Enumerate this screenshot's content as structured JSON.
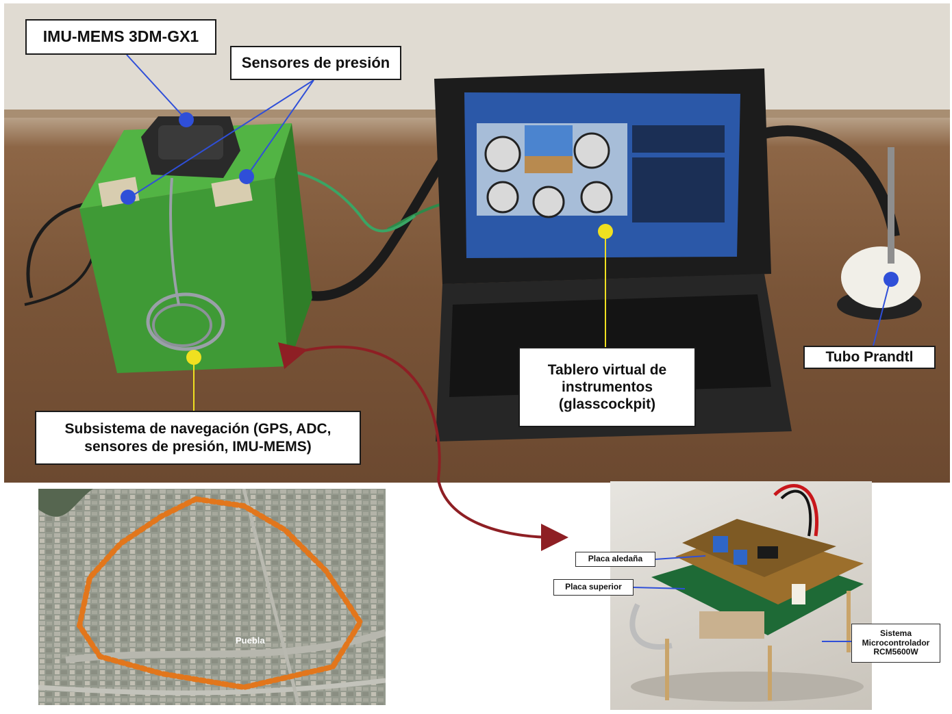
{
  "labels": {
    "imu": "IMU-MEMS 3DM-GX1",
    "pressure_sensors": "Sensores de presión",
    "virtual_panel_line1": "Tablero virtual de",
    "virtual_panel_line2": "instrumentos",
    "virtual_panel_line3": "(glasscockpit)",
    "prandtl": "Tubo Prandtl",
    "nav_subsystem_line1": "Subsistema de navegación (GPS, ADC,",
    "nav_subsystem_line2": "sensores de presión, IMU-MEMS)"
  },
  "board_labels": {
    "placa_aledana": "Placa aledaña",
    "placa_superior": "Placa superior",
    "sistema_line1": "Sistema",
    "sistema_line2": "Microcontrolador",
    "sistema_line3": "RCM5600W"
  },
  "map_labels": {
    "town": "Puebla"
  },
  "colors": {
    "connector_blue": "#2f4fd8",
    "connector_yellow": "#f0e020",
    "arrow_red": "#8e1f24",
    "box_green": "#3e9a33",
    "route_orange": "#e2761c"
  }
}
